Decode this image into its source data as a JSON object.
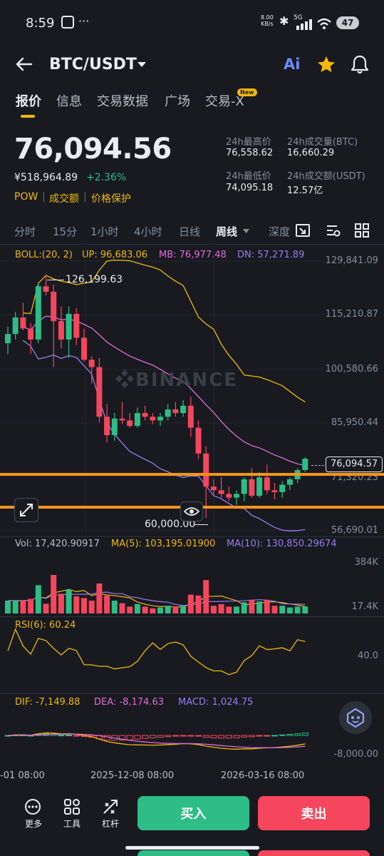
{
  "status_bar": {
    "time": "8:59",
    "more": "···",
    "speed_top": "8.00",
    "speed_bottom": "KB/s",
    "net": "5G",
    "battery": "47"
  },
  "header": {
    "pair": "BTC/USDT",
    "ai_label": "Ai"
  },
  "tabs": [
    {
      "label": "报价"
    },
    {
      "label": "信息"
    },
    {
      "label": "交易数据"
    },
    {
      "label": "广场"
    },
    {
      "label": "交易-X",
      "badge": "New"
    }
  ],
  "price": {
    "last": "76,094.56",
    "fiat": "¥518,964.89",
    "change": "+2.36%",
    "tags": [
      "POW",
      "成交额",
      "价格保护"
    ]
  },
  "stats": {
    "high_label": "24h最高价",
    "high": "76,558.62",
    "vol_btc_label": "24h成交量(BTC)",
    "vol_btc": "16,660.29",
    "low_label": "24h最低价",
    "low": "74,095.18",
    "vol_usdt_label": "24h成交额(USDT)",
    "vol_usdt": "12.57亿"
  },
  "timeframes": [
    "分时",
    "15分",
    "1小时",
    "4小时",
    "日线",
    "周线",
    "深度"
  ],
  "boll": {
    "label": "BOLL:(20, 2)",
    "up": "UP: 96,683.06",
    "mb": "MB: 76,977.48",
    "dn": "DN: 57,271.89"
  },
  "price_axis": [
    "129,841.09",
    "115,210.87",
    "100,580.66",
    "85,950.44",
    "71,320.23",
    "56,690.01"
  ],
  "current_price_tag": "76,094.57",
  "high_marker": "126,199.63",
  "low_marker": "60,000.00",
  "watermark": "BINANCE",
  "volume": {
    "vol": "Vol: 17,420.90917",
    "ma5": "MA(5): 103,195.01900",
    "ma10": "MA(10): 130,850.29674",
    "axis_top": "384K",
    "axis_bottom": "17.4K"
  },
  "rsi": {
    "label": "RSI(6): 60.24",
    "axis": "40.0"
  },
  "macd": {
    "dif": "DIF: -7,149.88",
    "dea": "DEA: -8,174.63",
    "macd": "MACD: 1,024.75",
    "axis": "-8,000.00"
  },
  "time_axis": [
    "-01 08:00",
    "2025-12-08 08:00",
    "2026-03-16 08:00"
  ],
  "bottom_bar": {
    "more": "更多",
    "tools": "工具",
    "leverage": "杠杆",
    "buy": "买入",
    "sell": "卖出"
  },
  "colors": {
    "up": "#2ebd85",
    "down": "#f6465d",
    "accent": "#f0b90b",
    "mb": "#e26cd6",
    "dn": "#9b7cf0",
    "orange": "#f7931a"
  },
  "chart_data": {
    "type": "candlestick",
    "ohlc": [
      [
        107500,
        112000,
        104500,
        110000
      ],
      [
        110000,
        116000,
        108500,
        114500
      ],
      [
        114500,
        118500,
        111000,
        111500
      ],
      [
        111500,
        113000,
        104500,
        108500
      ],
      [
        108500,
        124000,
        107500,
        123000
      ],
      [
        123000,
        126199.63,
        120500,
        121500
      ],
      [
        121500,
        123500,
        101000,
        113500
      ],
      [
        113500,
        117500,
        106000,
        108500
      ],
      [
        108500,
        117500,
        103500,
        115500
      ],
      [
        115500,
        117000,
        107000,
        109000
      ],
      [
        109000,
        111500,
        102500,
        103000
      ],
      [
        103000,
        104000,
        96500,
        101000
      ],
      [
        101000,
        103500,
        86000,
        87500
      ],
      [
        87500,
        91000,
        80500,
        82500
      ],
      [
        82500,
        88500,
        81000,
        87000
      ],
      [
        87000,
        91500,
        85500,
        86500
      ],
      [
        86500,
        88500,
        84500,
        85000
      ],
      [
        85000,
        90000,
        84500,
        88500
      ],
      [
        88500,
        90500,
        86500,
        87500
      ],
      [
        87500,
        88500,
        85500,
        86500
      ],
      [
        86500,
        88500,
        85000,
        87500
      ],
      [
        87500,
        91000,
        86500,
        89500
      ],
      [
        89500,
        91500,
        87500,
        88500
      ],
      [
        88500,
        92000,
        87500,
        90500
      ],
      [
        90500,
        93000,
        82000,
        84500
      ],
      [
        84500,
        86500,
        76000,
        77500
      ],
      [
        77500,
        79500,
        60000,
        68500
      ],
      [
        68500,
        70500,
        66000,
        67500
      ],
      [
        67500,
        71000,
        65500,
        66500
      ],
      [
        66500,
        68500,
        64500,
        65500
      ],
      [
        65500,
        67500,
        63500,
        66500
      ],
      [
        66500,
        71000,
        64500,
        70500
      ],
      [
        70500,
        73500,
        65500,
        66000
      ],
      [
        66000,
        72500,
        65500,
        71000
      ],
      [
        71000,
        74500,
        66500,
        67500
      ],
      [
        67500,
        69500,
        65000,
        67000
      ],
      [
        67000,
        70000,
        65500,
        69000
      ],
      [
        69000,
        71000,
        67500,
        70500
      ],
      [
        70500,
        73500,
        69500,
        73000
      ],
      [
        73000,
        76558.62,
        72500,
        76094.56
      ]
    ],
    "ylim": [
      56690.01,
      129841.09
    ],
    "volume_ylim": [
      0,
      420000
    ]
  }
}
